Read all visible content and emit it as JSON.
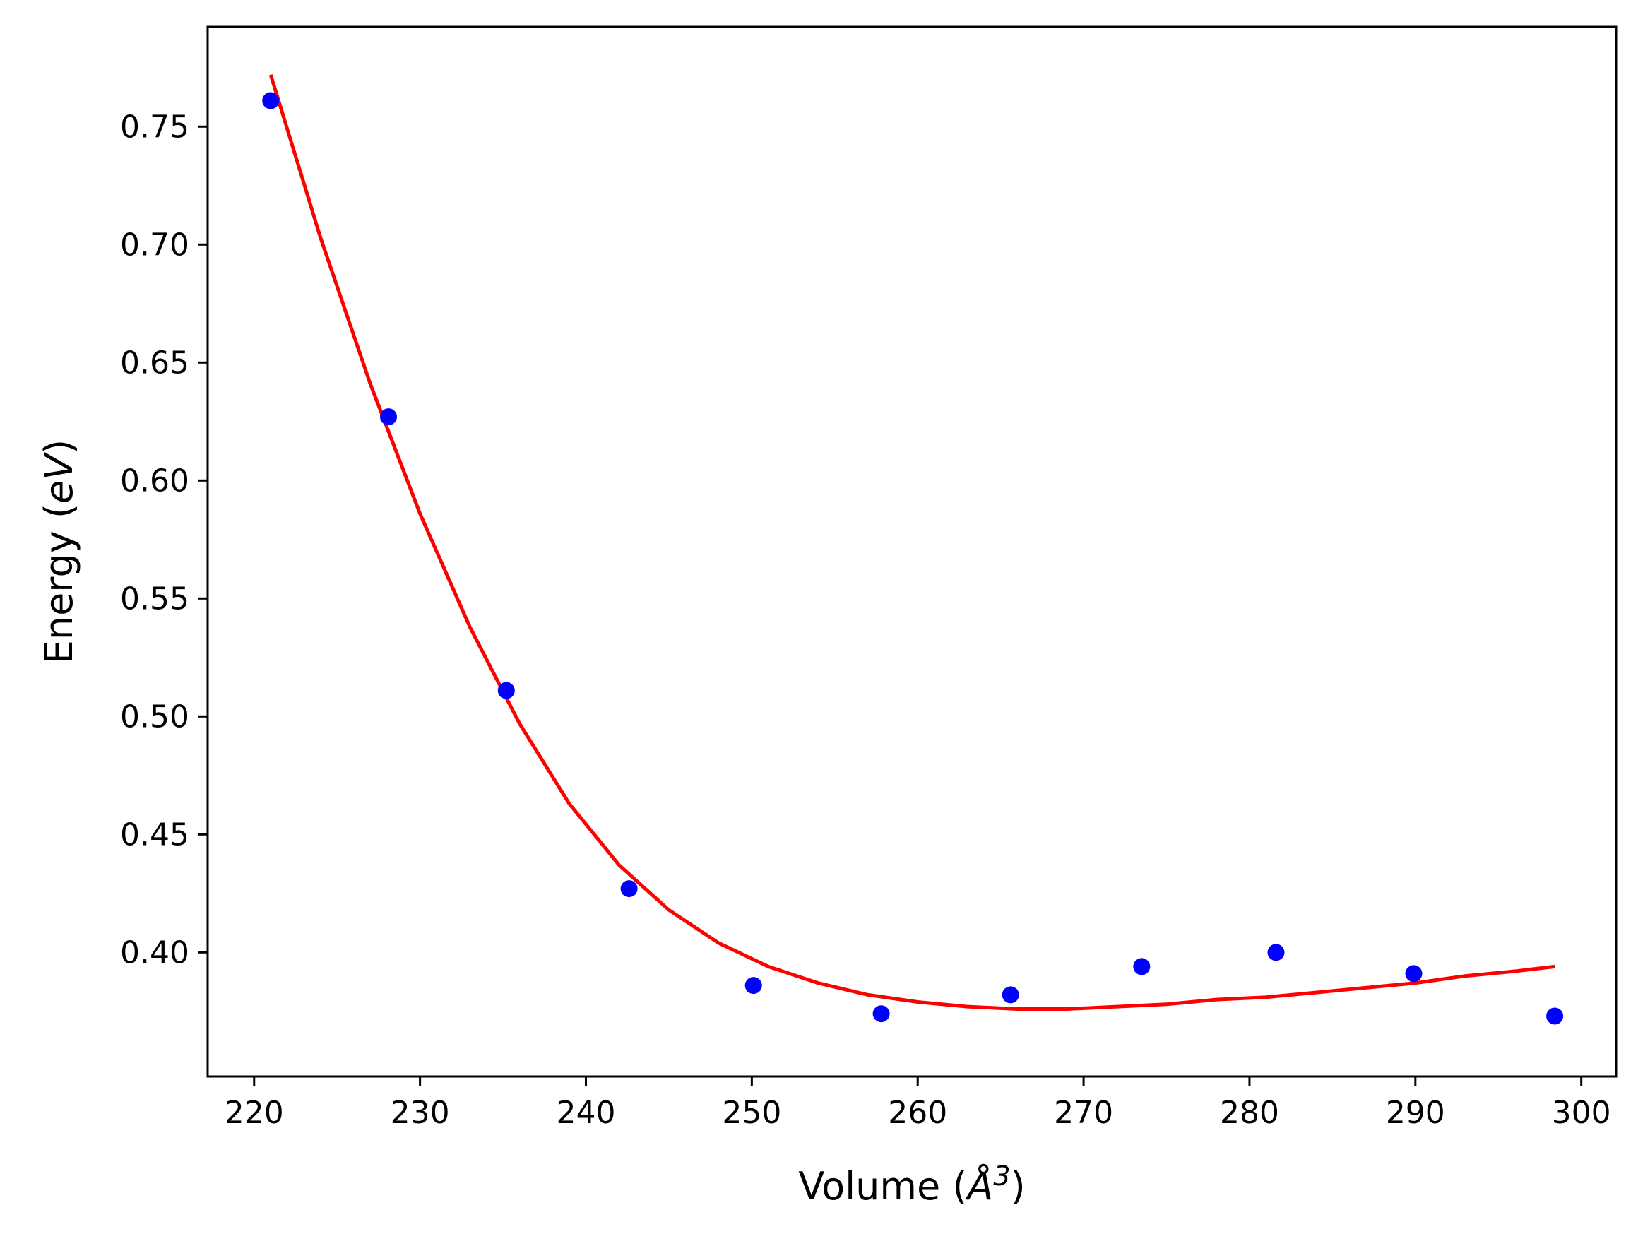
{
  "chart_data": {
    "type": "scatter",
    "xlabel": {
      "prefix": "Volume (",
      "symbol": "Å",
      "sup": "3",
      "suffix": ")"
    },
    "ylabel": {
      "prefix": "Energy (",
      "symbol": "eV",
      "suffix": ")"
    },
    "xlim": [
      217.2,
      302.1
    ],
    "ylim": [
      0.3474,
      0.7923
    ],
    "x_ticks": [
      220,
      230,
      240,
      250,
      260,
      270,
      280,
      290,
      300
    ],
    "x_tick_labels": [
      "220",
      "230",
      "240",
      "250",
      "260",
      "270",
      "280",
      "290",
      "300"
    ],
    "y_ticks": [
      0.4,
      0.45,
      0.5,
      0.55,
      0.6,
      0.65,
      0.7,
      0.75
    ],
    "y_tick_labels": [
      "0.40",
      "0.45",
      "0.50",
      "0.55",
      "0.60",
      "0.65",
      "0.70",
      "0.75"
    ],
    "grid": false,
    "series": [
      {
        "kind": "points",
        "color": "#0000ff",
        "x": [
          221.0,
          228.1,
          235.2,
          242.6,
          250.1,
          257.8,
          265.6,
          273.5,
          281.6,
          289.9,
          298.4
        ],
        "y": [
          0.761,
          0.627,
          0.511,
          0.427,
          0.386,
          0.374,
          0.382,
          0.394,
          0.4,
          0.391,
          0.373
        ]
      },
      {
        "kind": "fit-curve",
        "color": "#ff0000",
        "x": [
          221.0,
          224.0,
          227.0,
          230.0,
          233.0,
          236.0,
          239.0,
          242.0,
          245.0,
          248.0,
          251.0,
          254.0,
          257.0,
          260.0,
          263.0,
          266.0,
          269.0,
          272.0,
          275.0,
          278.0,
          281.0,
          284.0,
          287.0,
          290.0,
          293.0,
          296.0,
          298.4
        ],
        "y": [
          0.772,
          0.703,
          0.641,
          0.586,
          0.538,
          0.497,
          0.463,
          0.437,
          0.418,
          0.404,
          0.394,
          0.387,
          0.382,
          0.379,
          0.377,
          0.376,
          0.376,
          0.377,
          0.378,
          0.38,
          0.381,
          0.383,
          0.385,
          0.387,
          0.39,
          0.392,
          0.394
        ]
      }
    ]
  }
}
